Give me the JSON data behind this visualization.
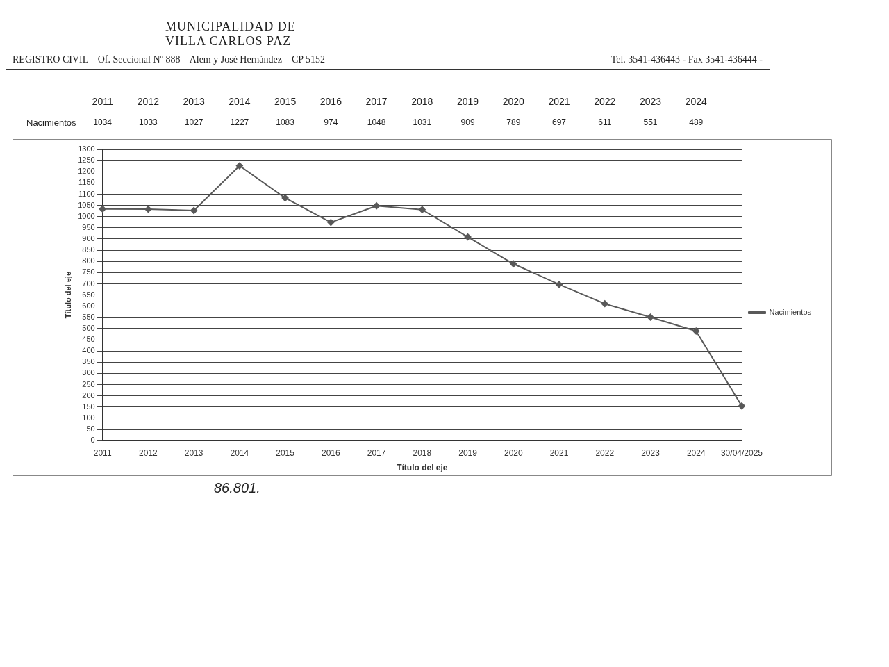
{
  "chart_data": {
    "type": "line",
    "title": "MUNICIPALIDAD DE VILLA CARLOS PAZ",
    "subtitle": "REGISTRO CIVIL – Of. Seccional Nº 888 – Alem y José Hernández – CP 5152",
    "annotations": [
      "Tel. 3541-436443 - Fax 3541-436444 -",
      "86.801."
    ],
    "xlabel": "Título del eje",
    "ylabel": "Título del eje",
    "categories": [
      "2011",
      "2012",
      "2013",
      "2014",
      "2015",
      "2016",
      "2017",
      "2018",
      "2019",
      "2020",
      "2021",
      "2022",
      "2023",
      "2024",
      "30/04/2025"
    ],
    "series": [
      {
        "name": "Nacimientos",
        "color": "#595959",
        "values": [
          1034,
          1033,
          1027,
          1227,
          1083,
          974,
          1048,
          1031,
          909,
          789,
          697,
          611,
          551,
          489,
          155
        ],
        "value_labels": [
          "1034",
          "1033",
          "1027",
          "1227",
          "1083",
          "974",
          "1048",
          "1031",
          "909",
          "789",
          "697",
          "611",
          "551",
          "489",
          null
        ]
      }
    ],
    "ylim": [
      0,
      1300
    ],
    "yticks": [
      0,
      50,
      100,
      150,
      200,
      250,
      300,
      350,
      400,
      450,
      500,
      550,
      600,
      650,
      700,
      750,
      800,
      850,
      900,
      950,
      1000,
      1050,
      1100,
      1150,
      1200,
      1250,
      1300
    ],
    "grid": "y",
    "legend": "right",
    "marker": "diamond",
    "line_style": "solid"
  }
}
